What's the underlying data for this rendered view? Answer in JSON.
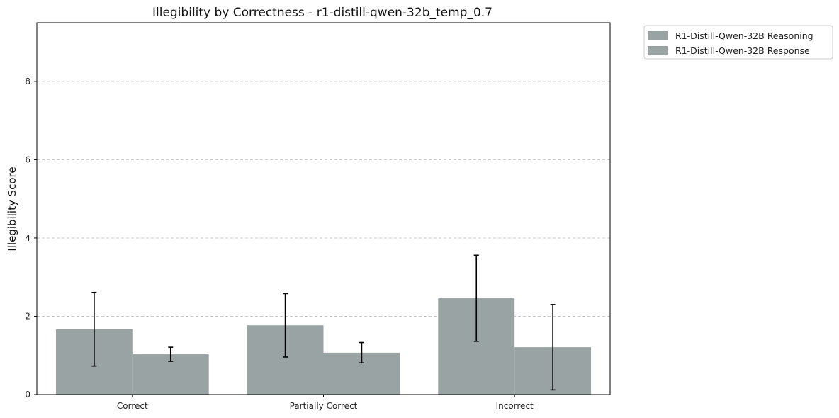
{
  "chart_data": {
    "type": "bar",
    "title": "Illegibility by Correctness - r1-distill-qwen-32b_temp_0.7",
    "xlabel": "",
    "ylabel": "Illegibility Score",
    "categories": [
      "Correct",
      "Partially Correct",
      "Incorrect"
    ],
    "series": [
      {
        "name": "R1-Distill-Qwen-32B Reasoning",
        "color": "#99a3a4",
        "values": [
          1.67,
          1.77,
          2.46
        ],
        "error": [
          0.94,
          0.81,
          1.1
        ]
      },
      {
        "name": "R1-Distill-Qwen-32B Response",
        "color": "#99a3a4",
        "values": [
          1.03,
          1.07,
          1.21
        ],
        "error": [
          0.18,
          0.26,
          1.09
        ]
      }
    ],
    "ylim": [
      0,
      9.5
    ],
    "yticks": [
      0,
      2,
      4,
      6,
      8
    ],
    "grid": "y-dashed",
    "legend_position": "outside-top-right"
  }
}
